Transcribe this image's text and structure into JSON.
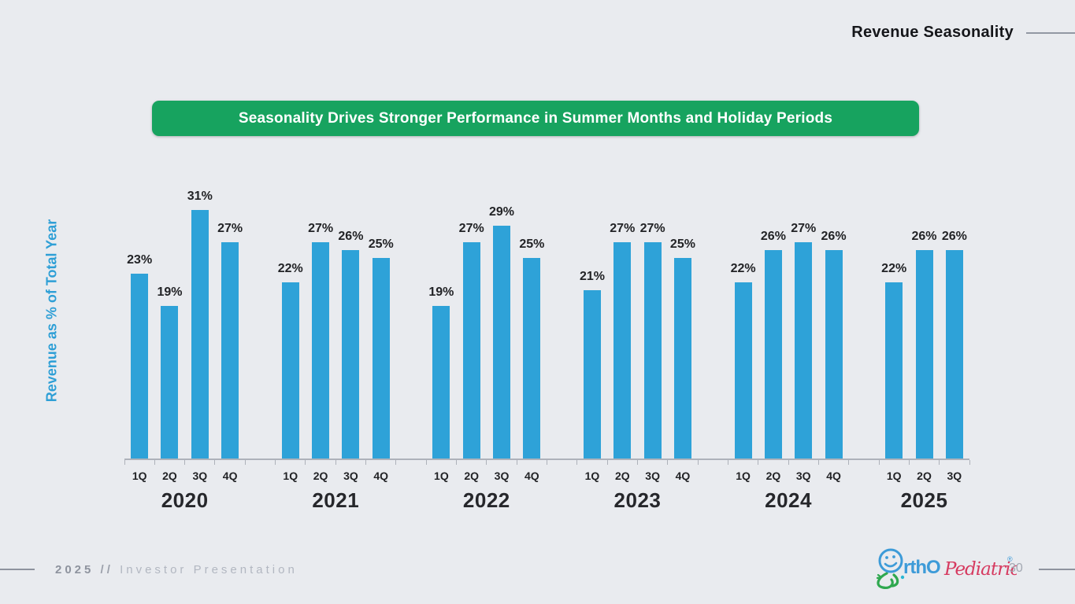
{
  "slide": {
    "title": "Revenue Seasonality",
    "banner": "Seasonality Drives Stronger Performance in Summer Months and Holiday Periods",
    "footer": {
      "year": "2025",
      "separator": "//",
      "label": "Investor Presentation",
      "page_number": "30"
    },
    "logo": {
      "name": "OrthoPediatrics",
      "text_blue": "rthO",
      "text_red": "Pediatrics",
      "registered": "®"
    }
  },
  "colors": {
    "background": "#E9EBEF",
    "bar_blue": "#2EA2D8",
    "banner_green": "#17A35F",
    "axis_label_blue": "#2E9FD6",
    "logo_blue": "#3D9BD8",
    "logo_green": "#2FA84F",
    "logo_red": "#D63A60"
  },
  "chart_data": {
    "type": "bar",
    "title": "Seasonality Drives Stronger Performance in Summer Months and Holiday Periods",
    "xlabel": "",
    "ylabel": "Revenue as % of Total Year",
    "unit": "%",
    "value_label_format": "{v}%",
    "ylim": [
      0,
      33
    ],
    "grid": false,
    "legend": false,
    "groups": [
      {
        "year": "2020",
        "quarters": [
          "1Q",
          "2Q",
          "3Q",
          "4Q"
        ],
        "values": [
          23,
          19,
          31,
          27
        ]
      },
      {
        "year": "2021",
        "quarters": [
          "1Q",
          "2Q",
          "3Q",
          "4Q"
        ],
        "values": [
          22,
          27,
          26,
          25
        ]
      },
      {
        "year": "2022",
        "quarters": [
          "1Q",
          "2Q",
          "3Q",
          "4Q"
        ],
        "values": [
          19,
          27,
          29,
          25
        ]
      },
      {
        "year": "2023",
        "quarters": [
          "1Q",
          "2Q",
          "3Q",
          "4Q"
        ],
        "values": [
          21,
          27,
          27,
          25
        ]
      },
      {
        "year": "2024",
        "quarters": [
          "1Q",
          "2Q",
          "3Q",
          "4Q"
        ],
        "values": [
          22,
          26,
          27,
          26
        ]
      },
      {
        "year": "2025",
        "quarters": [
          "1Q",
          "2Q",
          "3Q"
        ],
        "values": [
          22,
          26,
          26
        ]
      }
    ]
  }
}
